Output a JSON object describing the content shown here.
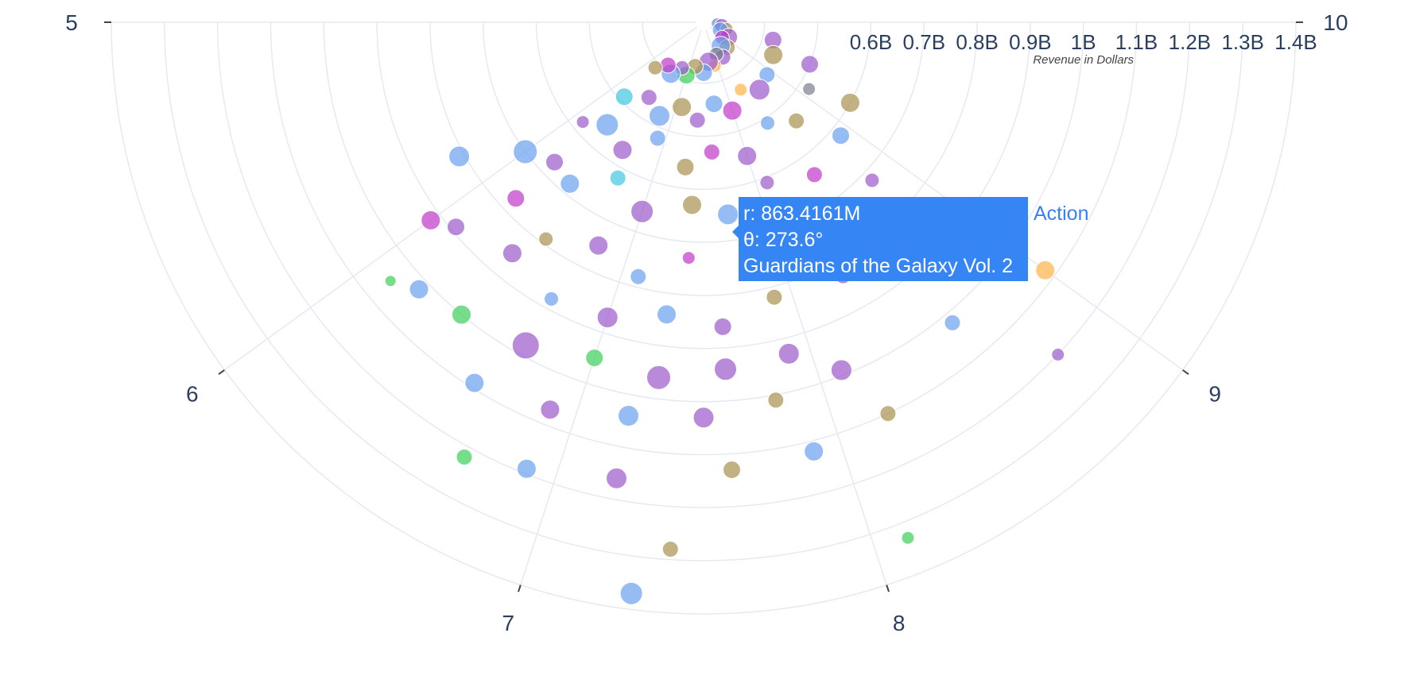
{
  "chart_data": {
    "type": "scatter",
    "polar": true,
    "sector_degrees": [
      180,
      360
    ],
    "angular_axis": {
      "range": [
        5,
        10
      ],
      "tick_labels": [
        "5",
        "6",
        "7",
        "8",
        "9",
        "10"
      ]
    },
    "radial_axis": {
      "title": "Revenue in Dollars",
      "range_billions": [
        0.3,
        1.4
      ],
      "tick_values_billions": [
        0.6,
        0.7,
        0.8,
        0.9,
        1.0,
        1.1,
        1.2,
        1.3,
        1.4
      ],
      "tick_labels": [
        "0.6B",
        "0.7B",
        "0.8B",
        "0.9B",
        "1B",
        "1.1B",
        "1.2B",
        "1.3B",
        "1.4B"
      ]
    },
    "grid": true,
    "colors": {
      "blue": "#6a9ff0",
      "purple": "#9b59c9",
      "olive": "#a8924f",
      "green": "#3ccf5a",
      "magenta": "#c137c9",
      "orange": "#ffb447",
      "cyan": "#3fc6e0",
      "grey": "#7a7f8a",
      "grid": "#e5e9f3",
      "tooltip": "#3585f5"
    },
    "points": [
      {
        "r": 0.31,
        "theta": 9.95,
        "c": "orange",
        "s": 6
      },
      {
        "r": 0.31,
        "theta": 9.85,
        "c": "blue",
        "s": 7
      },
      {
        "r": 0.32,
        "theta": 9.7,
        "c": "purple",
        "s": 9
      },
      {
        "r": 0.33,
        "theta": 9.55,
        "c": "olive",
        "s": 8
      },
      {
        "r": 0.32,
        "theta": 9.3,
        "c": "blue",
        "s": 10
      },
      {
        "r": 0.34,
        "theta": 9.15,
        "c": "purple",
        "s": 11
      },
      {
        "r": 0.33,
        "theta": 8.9,
        "c": "magenta",
        "s": 9
      },
      {
        "r": 0.35,
        "theta": 8.7,
        "c": "olive",
        "s": 10
      },
      {
        "r": 0.34,
        "theta": 8.5,
        "c": "blue",
        "s": 12
      },
      {
        "r": 0.36,
        "theta": 8.3,
        "c": "purple",
        "s": 10
      },
      {
        "r": 0.35,
        "theta": 8.1,
        "c": "grey",
        "s": 9
      },
      {
        "r": 0.37,
        "theta": 7.9,
        "c": "orange",
        "s": 8
      },
      {
        "r": 0.36,
        "theta": 7.7,
        "c": "purple",
        "s": 12
      },
      {
        "r": 0.38,
        "theta": 7.5,
        "c": "blue",
        "s": 11
      },
      {
        "r": 0.37,
        "theta": 7.2,
        "c": "olive",
        "s": 10
      },
      {
        "r": 0.39,
        "theta": 7.0,
        "c": "green",
        "s": 11
      },
      {
        "r": 0.38,
        "theta": 6.8,
        "c": "purple",
        "s": 9
      },
      {
        "r": 0.4,
        "theta": 6.6,
        "c": "blue",
        "s": 12
      },
      {
        "r": 0.39,
        "theta": 6.4,
        "c": "magenta",
        "s": 10
      },
      {
        "r": 0.41,
        "theta": 6.2,
        "c": "olive",
        "s": 9
      },
      {
        "r": 0.42,
        "theta": 9.6,
        "c": "purple",
        "s": 11
      },
      {
        "r": 0.43,
        "theta": 9.3,
        "c": "olive",
        "s": 12
      },
      {
        "r": 0.44,
        "theta": 8.9,
        "c": "blue",
        "s": 10
      },
      {
        "r": 0.45,
        "theta": 8.6,
        "c": "purple",
        "s": 13
      },
      {
        "r": 0.43,
        "theta": 8.3,
        "c": "orange",
        "s": 8
      },
      {
        "r": 0.46,
        "theta": 8.0,
        "c": "magenta",
        "s": 12
      },
      {
        "r": 0.44,
        "theta": 7.7,
        "c": "blue",
        "s": 11
      },
      {
        "r": 0.47,
        "theta": 7.4,
        "c": "purple",
        "s": 10
      },
      {
        "r": 0.45,
        "theta": 7.1,
        "c": "olive",
        "s": 12
      },
      {
        "r": 0.48,
        "theta": 6.8,
        "c": "blue",
        "s": 13
      },
      {
        "r": 0.46,
        "theta": 6.5,
        "c": "purple",
        "s": 10
      },
      {
        "r": 0.49,
        "theta": 6.2,
        "c": "cyan",
        "s": 11
      },
      {
        "r": 0.5,
        "theta": 9.4,
        "c": "purple",
        "s": 11
      },
      {
        "r": 0.52,
        "theta": 9.1,
        "c": "grey",
        "s": 8
      },
      {
        "r": 0.54,
        "theta": 8.7,
        "c": "olive",
        "s": 10
      },
      {
        "r": 0.51,
        "theta": 8.4,
        "c": "blue",
        "s": 9
      },
      {
        "r": 0.55,
        "theta": 8.0,
        "c": "purple",
        "s": 12
      },
      {
        "r": 0.53,
        "theta": 7.6,
        "c": "magenta",
        "s": 10
      },
      {
        "r": 0.56,
        "theta": 7.3,
        "c": "olive",
        "s": 11
      },
      {
        "r": 0.52,
        "theta": 6.9,
        "c": "blue",
        "s": 10
      },
      {
        "r": 0.57,
        "theta": 6.6,
        "c": "purple",
        "s": 12
      },
      {
        "r": 0.55,
        "theta": 6.3,
        "c": "blue",
        "s": 14
      },
      {
        "r": 0.58,
        "theta": 6.1,
        "c": "purple",
        "s": 8
      },
      {
        "r": 0.6,
        "theta": 9.2,
        "c": "olive",
        "s": 12
      },
      {
        "r": 0.62,
        "theta": 8.9,
        "c": "blue",
        "s": 11
      },
      {
        "r": 0.64,
        "theta": 8.5,
        "c": "magenta",
        "s": 10
      },
      {
        "r": 0.61,
        "theta": 8.1,
        "c": "purple",
        "s": 9
      },
      {
        "r": 0.65,
        "theta": 7.7,
        "c": "blue",
        "s": 13
      },
      {
        "r": 0.63,
        "theta": 7.4,
        "c": "olive",
        "s": 12
      },
      {
        "r": 0.66,
        "theta": 7.0,
        "c": "purple",
        "s": 14
      },
      {
        "r": 0.62,
        "theta": 6.7,
        "c": "cyan",
        "s": 10
      },
      {
        "r": 0.68,
        "theta": 6.4,
        "c": "blue",
        "s": 12
      },
      {
        "r": 0.67,
        "theta": 6.2,
        "c": "purple",
        "s": 11
      },
      {
        "r": 0.7,
        "theta": 6.0,
        "c": "blue",
        "s": 15
      },
      {
        "r": 0.72,
        "theta": 8.8,
        "c": "purple",
        "s": 9
      },
      {
        "r": 0.74,
        "theta": 8.5,
        "c": "olive",
        "s": 11
      },
      {
        "r": 0.71,
        "theta": 8.2,
        "c": "blue",
        "s": 12
      },
      {
        "r": 0.76,
        "theta": 7.8,
        "c": "purple",
        "s": 10
      },
      {
        "r": 0.73,
        "theta": 7.4,
        "c": "magenta",
        "s": 8
      },
      {
        "r": 0.78,
        "theta": 7.1,
        "c": "blue",
        "s": 10
      },
      {
        "r": 0.75,
        "theta": 6.8,
        "c": "purple",
        "s": 12
      },
      {
        "r": 0.79,
        "theta": 6.5,
        "c": "olive",
        "s": 9
      },
      {
        "r": 0.77,
        "theta": 6.2,
        "c": "magenta",
        "s": 11
      },
      {
        "r": 0.81,
        "theta": 5.8,
        "c": "blue",
        "s": 13
      },
      {
        "r": 0.83,
        "theta": 8.3,
        "c": "purple",
        "s": 10
      },
      {
        "r": 0.82,
        "theta": 7.9,
        "c": "olive",
        "s": 10
      },
      {
        "r": 0.86,
        "theta": 7.6,
        "c": "purple",
        "s": 11
      },
      {
        "r": 0.84,
        "theta": 7.3,
        "c": "blue",
        "s": 12
      },
      {
        "r": 0.87,
        "theta": 7.0,
        "c": "purple",
        "s": 13
      },
      {
        "r": 0.88,
        "theta": 6.7,
        "c": "blue",
        "s": 9
      },
      {
        "r": 0.85,
        "theta": 6.4,
        "c": "purple",
        "s": 12
      },
      {
        "r": 0.89,
        "theta": 6.1,
        "c": "purple",
        "s": 11
      },
      {
        "r": 0.92,
        "theta": 6.0,
        "c": "magenta",
        "s": 12
      },
      {
        "r": 0.93,
        "theta": 7.9,
        "c": "purple",
        "s": 13
      },
      {
        "r": 0.94,
        "theta": 7.6,
        "c": "purple",
        "s": 14
      },
      {
        "r": 0.96,
        "theta": 7.3,
        "c": "purple",
        "s": 15
      },
      {
        "r": 0.95,
        "theta": 7.0,
        "c": "green",
        "s": 11
      },
      {
        "r": 0.98,
        "theta": 6.7,
        "c": "purple",
        "s": 17
      },
      {
        "r": 1.0,
        "theta": 6.4,
        "c": "green",
        "s": 12
      },
      {
        "r": 1.02,
        "theta": 6.2,
        "c": "blue",
        "s": 12
      },
      {
        "r": 1.05,
        "theta": 6.1,
        "c": "green",
        "s": 7
      },
      {
        "r": 0.99,
        "theta": 8.1,
        "c": "purple",
        "s": 13
      },
      {
        "r": 1.01,
        "theta": 7.8,
        "c": "olive",
        "s": 10
      },
      {
        "r": 1.03,
        "theta": 7.5,
        "c": "purple",
        "s": 13
      },
      {
        "r": 1.04,
        "theta": 7.2,
        "c": "blue",
        "s": 13
      },
      {
        "r": 1.07,
        "theta": 6.9,
        "c": "purple",
        "s": 12
      },
      {
        "r": 1.09,
        "theta": 6.6,
        "c": "blue",
        "s": 12
      },
      {
        "r": 1.1,
        "theta": 8.2,
        "c": "olive",
        "s": 10
      },
      {
        "r": 1.12,
        "theta": 7.9,
        "c": "blue",
        "s": 12
      },
      {
        "r": 1.13,
        "theta": 7.6,
        "c": "olive",
        "s": 11
      },
      {
        "r": 1.16,
        "theta": 7.2,
        "c": "purple",
        "s": 13
      },
      {
        "r": 1.19,
        "theta": 6.9,
        "c": "blue",
        "s": 12
      },
      {
        "r": 1.22,
        "theta": 6.7,
        "c": "green",
        "s": 10
      },
      {
        "r": 1.2,
        "theta": 8.8,
        "c": "purple",
        "s": 8
      },
      {
        "r": 1.08,
        "theta": 9.0,
        "c": "orange",
        "s": 12
      },
      {
        "r": 1.28,
        "theta": 7.4,
        "c": "olive",
        "s": 10
      },
      {
        "r": 1.33,
        "theta": 8.1,
        "c": "green",
        "s": 8
      },
      {
        "r": 1.37,
        "theta": 7.3,
        "c": "blue",
        "s": 14
      },
      {
        "r": 1.02,
        "theta": 8.6,
        "c": "blue",
        "s": 10
      },
      {
        "r": 0.86,
        "theta": 8.55,
        "c": "blue",
        "s": 12
      }
    ],
    "hover_label": {
      "r_text": "r: 863.4161M",
      "theta_text": "θ: 273.6°",
      "name_text": "Guardians of the Galaxy Vol. 2",
      "series": "Action"
    }
  }
}
